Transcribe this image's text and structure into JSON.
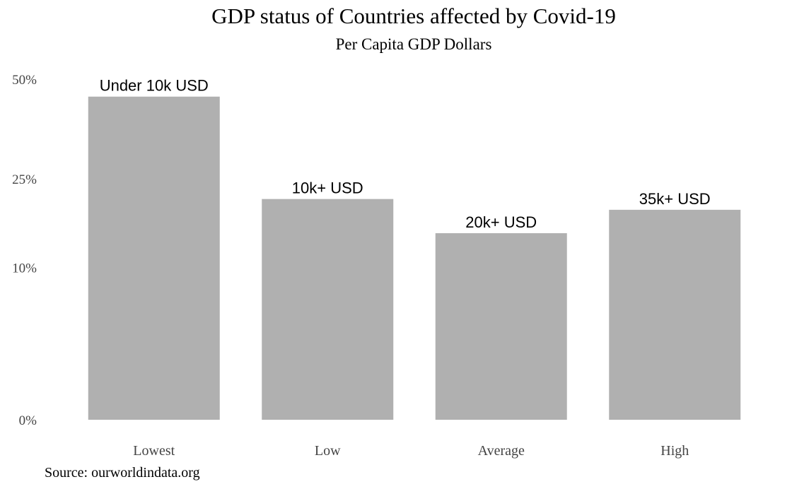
{
  "chart_data": {
    "type": "bar",
    "title": "GDP status of Countries affected by Covid-19",
    "subtitle": "Per Capita GDP Dollars",
    "categories": [
      "Lowest",
      "Low",
      "Average",
      "High"
    ],
    "values": [
      45,
      21,
      15,
      19
    ],
    "bar_labels": [
      "Under 10k USD",
      "10k+ USD",
      "20k+ USD",
      "35k+ USD"
    ],
    "y_ticks": [
      {
        "value": 0,
        "label": "0%"
      },
      {
        "value": 10,
        "label": "10%"
      },
      {
        "value": 25,
        "label": "25%"
      },
      {
        "value": 50,
        "label": "50%"
      }
    ],
    "y_scale": "sqrt",
    "ylim": [
      0,
      50
    ],
    "xlabel": "",
    "ylabel": "",
    "grid": false,
    "bar_color": "#b0b0b0",
    "source": "Source: ourworldindata.org"
  }
}
